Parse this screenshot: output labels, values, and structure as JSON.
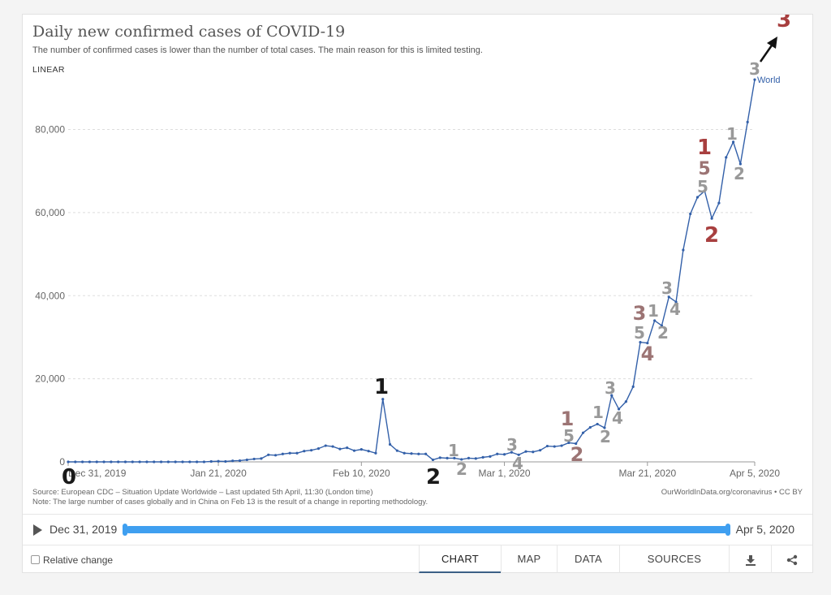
{
  "title": "Daily new confirmed cases of COVID-19",
  "subtitle": "The number of confirmed cases is lower than the number of total cases. The main reason for this is limited testing.",
  "scale_label": "LINEAR",
  "footer": {
    "source": "Source: European CDC – Situation Update Worldwide – Last updated 5th April, 11:30 (London time)",
    "note": "Note: The large number of cases globally and in China on Feb 13 is the result of a change in reporting methodology.",
    "credit": "OurWorldInData.org/coronavirus • CC BY"
  },
  "timeline": {
    "start": "Dec 31, 2019",
    "end": "Apr 5, 2020"
  },
  "controls": {
    "relative_change": "Relative change",
    "tabs": [
      "CHART",
      "MAP",
      "DATA",
      "SOURCES"
    ],
    "active_tab": "CHART",
    "download_icon": "download-icon",
    "share_icon": "share-icon"
  },
  "chart_data": {
    "type": "line",
    "x_ticks": [
      "Dec 31, 2019",
      "Jan 21, 2020",
      "Feb 10, 2020",
      "Mar 1, 2020",
      "Mar 21, 2020",
      "Apr 5, 2020"
    ],
    "x_tick_days": [
      0,
      21,
      41,
      61,
      81,
      96
    ],
    "y_ticks": [
      0,
      20000,
      40000,
      60000,
      80000
    ],
    "y_tick_labels": [
      "0",
      "20,000",
      "40,000",
      "60,000",
      "80,000"
    ],
    "ylim": [
      0,
      93000
    ],
    "grid": true,
    "series": [
      {
        "name": "World",
        "color": "#3360a9",
        "values": [
          0,
          0,
          0,
          0,
          0,
          0,
          0,
          0,
          0,
          0,
          0,
          0,
          0,
          0,
          0,
          0,
          0,
          0,
          0,
          0,
          100,
          150,
          100,
          250,
          300,
          500,
          700,
          800,
          1700,
          1600,
          1900,
          2100,
          2100,
          2600,
          2800,
          3200,
          3900,
          3700,
          3100,
          3400,
          2700,
          3000,
          2600,
          2100,
          15100,
          4200,
          2700,
          2100,
          2000,
          1900,
          1900,
          500,
          1000,
          900,
          900,
          600,
          900,
          800,
          1100,
          1300,
          1900,
          1800,
          2300,
          1700,
          2500,
          2400,
          2800,
          3800,
          3700,
          3900,
          4600,
          4400,
          7000,
          8300,
          9100,
          8200,
          16000,
          12700,
          14500,
          18100,
          28800,
          28600,
          34000,
          32800,
          39700,
          38500,
          51000,
          59700,
          63700,
          65200,
          58600,
          62300,
          73300,
          77000,
          71700,
          81800,
          92000
        ]
      }
    ],
    "annotations": [
      {
        "text": "0",
        "color": "#1a1a1a"
      },
      {
        "text": "1",
        "color": "#1a1a1a"
      },
      {
        "text": "2",
        "color": "#1a1a1a"
      },
      {
        "text": "1",
        "color": "#999"
      },
      {
        "text": "2",
        "color": "#999"
      },
      {
        "text": "3",
        "color": "#999"
      },
      {
        "text": "4",
        "color": "#999"
      },
      {
        "text": "1",
        "color": "#9c7474"
      },
      {
        "text": "5",
        "color": "#999"
      },
      {
        "text": "2",
        "color": "#9c7474"
      },
      {
        "text": "1",
        "color": "#999"
      },
      {
        "text": "2",
        "color": "#999"
      },
      {
        "text": "3",
        "color": "#999"
      },
      {
        "text": "4",
        "color": "#999"
      },
      {
        "text": "3",
        "color": "#9c7474"
      },
      {
        "text": "5",
        "color": "#999"
      },
      {
        "text": "4",
        "color": "#9c7474"
      },
      {
        "text": "1",
        "color": "#999"
      },
      {
        "text": "2",
        "color": "#999"
      },
      {
        "text": "3",
        "color": "#999"
      },
      {
        "text": "4",
        "color": "#999"
      },
      {
        "text": "1",
        "color": "#a83f3f"
      },
      {
        "text": "5",
        "color": "#9c7474"
      },
      {
        "text": "5",
        "color": "#999"
      },
      {
        "text": "2",
        "color": "#a83f3f"
      },
      {
        "text": "1",
        "color": "#999"
      },
      {
        "text": "2",
        "color": "#999"
      },
      {
        "text": "3",
        "color": "#999"
      },
      {
        "text": "3",
        "color": "#a83f3f"
      }
    ]
  }
}
